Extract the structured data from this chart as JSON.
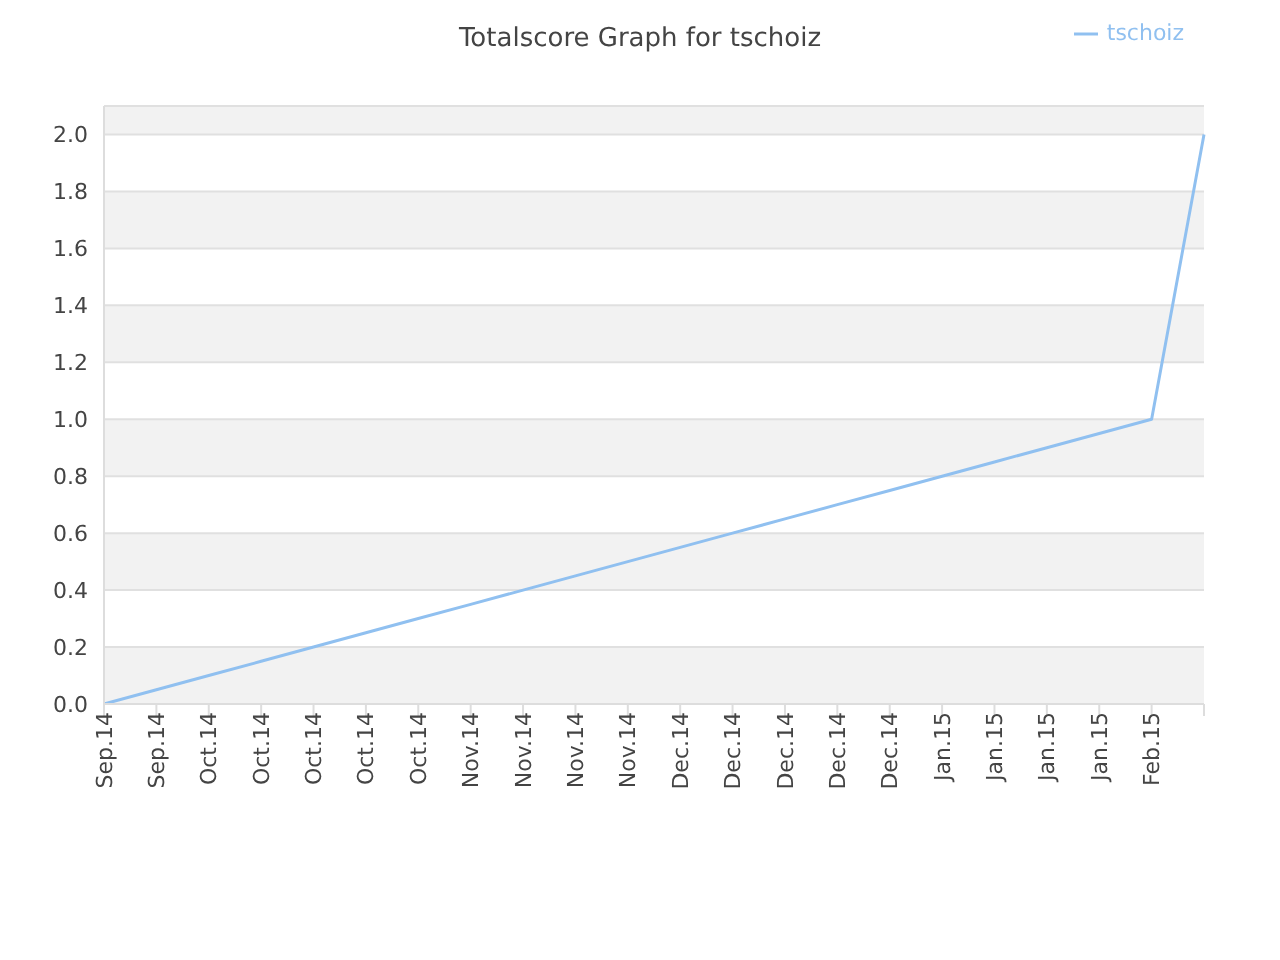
{
  "chart_data": {
    "type": "line",
    "title": "Totalscore Graph for tschoiz",
    "categories": [
      "Sep.14",
      "Sep.14",
      "Oct.14",
      "Oct.14",
      "Oct.14",
      "Oct.14",
      "Oct.14",
      "Nov.14",
      "Nov.14",
      "Nov.14",
      "Nov.14",
      "Dec.14",
      "Dec.14",
      "Dec.14",
      "Dec.14",
      "Dec.14",
      "Jan.15",
      "Jan.15",
      "Jan.15",
      "Jan.15",
      "Feb.15",
      null
    ],
    "series": [
      {
        "name": "tschoiz",
        "color": "#90c0f0",
        "values": [
          0,
          0.05,
          0.1,
          0.15,
          0.2,
          0.25,
          0.3,
          0.35,
          0.4,
          0.45,
          0.5,
          0.55,
          0.6,
          0.65,
          0.7,
          0.75,
          0.8,
          0.85,
          0.9,
          0.95,
          1,
          2
        ]
      }
    ],
    "ylim": [
      0,
      2.1
    ],
    "yticks": [
      {
        "value": 0,
        "label": "0.0"
      },
      {
        "value": 0.2,
        "label": "0.2"
      },
      {
        "value": 0.4,
        "label": "0.4"
      },
      {
        "value": 0.6,
        "label": "0.6"
      },
      {
        "value": 0.8,
        "label": "0.8"
      },
      {
        "value": 1,
        "label": "1.0"
      },
      {
        "value": 1.2,
        "label": "1.2"
      },
      {
        "value": 1.4,
        "label": "1.4"
      },
      {
        "value": 1.6,
        "label": "1.6"
      },
      {
        "value": 1.8,
        "label": "1.8"
      },
      {
        "value": 2,
        "label": "2.0"
      }
    ],
    "grid": "y",
    "legend": "top right",
    "marker": "none",
    "line_style": "solid"
  }
}
